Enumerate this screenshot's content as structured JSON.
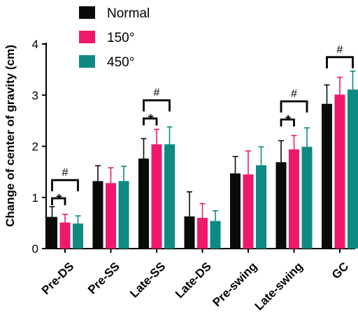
{
  "chart_data": {
    "type": "bar",
    "title": "",
    "xlabel": "",
    "ylabel": "Change of center of gravity (cm)",
    "ylim": [
      0,
      4
    ],
    "yticks": [
      0,
      1,
      2,
      3,
      4
    ],
    "grid": false,
    "legend_position": "top-left",
    "categories": [
      "Pre-DS",
      "Pre-SS",
      "Late-SS",
      "Late-DS",
      "Pre-swing",
      "Late-swing",
      "GC"
    ],
    "series": [
      {
        "name": "Normal",
        "color": "#0a0a0a",
        "values": [
          0.62,
          1.32,
          1.76,
          0.63,
          1.47,
          1.69,
          2.83
        ],
        "errors": [
          0.2,
          0.3,
          0.39,
          0.48,
          0.33,
          0.42,
          0.37
        ]
      },
      {
        "name": "150°",
        "color": "#f0186b",
        "values": [
          0.51,
          1.28,
          2.04,
          0.6,
          1.45,
          1.94,
          3.01
        ],
        "errors": [
          0.16,
          0.3,
          0.29,
          0.28,
          0.46,
          0.27,
          0.34
        ]
      },
      {
        "name": "450°",
        "color": "#0e8a82",
        "values": [
          0.49,
          1.32,
          2.04,
          0.54,
          1.63,
          1.99,
          3.11
        ],
        "errors": [
          0.15,
          0.29,
          0.34,
          0.2,
          0.36,
          0.37,
          0.36
        ]
      }
    ],
    "annotations": [
      {
        "category": "Pre-DS",
        "marks": [
          {
            "symbol": "#",
            "from": 0,
            "to": 2
          },
          {
            "symbol": "*",
            "from": 0,
            "to": 1
          }
        ]
      },
      {
        "category": "Late-SS",
        "marks": [
          {
            "symbol": "#",
            "from": 0,
            "to": 2
          },
          {
            "symbol": "*",
            "from": 0,
            "to": 1
          }
        ]
      },
      {
        "category": "Late-swing",
        "marks": [
          {
            "symbol": "#",
            "from": 0,
            "to": 2
          },
          {
            "symbol": "*",
            "from": 0,
            "to": 1
          }
        ]
      },
      {
        "category": "GC",
        "marks": [
          {
            "symbol": "#",
            "from": 0,
            "to": 2
          }
        ]
      }
    ]
  }
}
